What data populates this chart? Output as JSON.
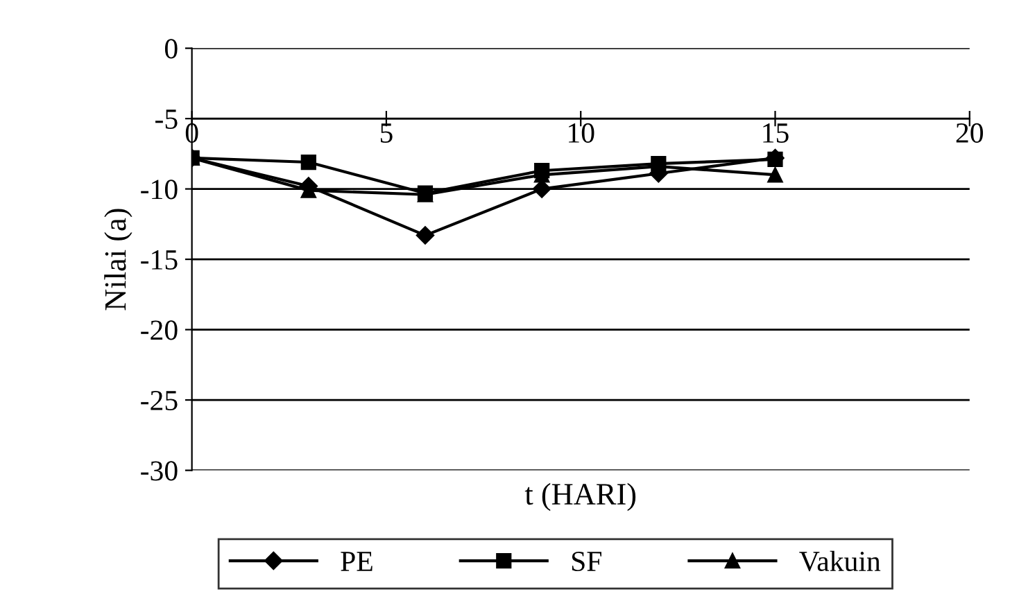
{
  "chart_data": {
    "type": "line",
    "xlabel": "t (HARI)",
    "ylabel": "Nilai (a)",
    "x": [
      0,
      3,
      6,
      9,
      12,
      15
    ],
    "series": [
      {
        "name": "PE",
        "color": "#000000",
        "marker": "diamond",
        "values": [
          -7.8,
          -9.8,
          -13.3,
          -10,
          -8.9,
          -7.8
        ]
      },
      {
        "name": "SF",
        "color": "#000000",
        "marker": "square",
        "values": [
          -7.8,
          -8.1,
          -10.3,
          -8.7,
          -8.2,
          -7.9
        ]
      },
      {
        "name": "Vakuin",
        "color": "#000000",
        "marker": "triangle",
        "values": [
          -7.8,
          -10.1,
          -10.4,
          -9,
          -8.4,
          -9
        ]
      }
    ],
    "xlim": [
      0,
      20
    ],
    "xticks": [
      0,
      5,
      10,
      15,
      20
    ],
    "ylim": [
      -30,
      0
    ],
    "yticks": [
      -30,
      -25,
      -20,
      -15,
      -10,
      -5,
      0
    ],
    "grid": "y",
    "legend": "bottom"
  }
}
